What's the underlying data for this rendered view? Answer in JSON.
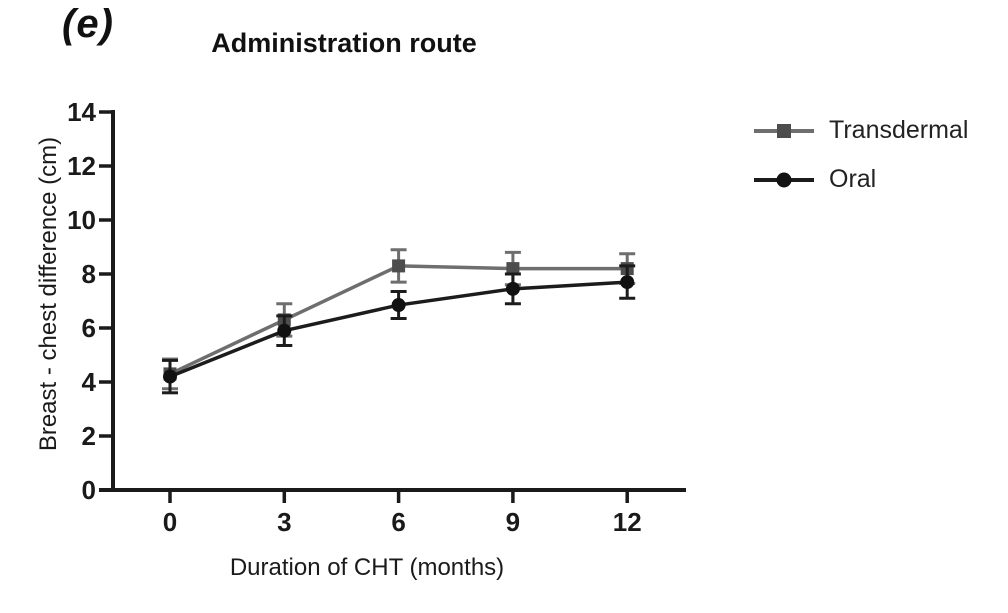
{
  "chart_data": {
    "type": "line",
    "panel_label": "(e)",
    "title": "Administration route",
    "xlabel": "Duration of CHT (months)",
    "ylabel": "Breast - chest difference (cm)",
    "x": [
      0,
      3,
      6,
      9,
      12
    ],
    "xticks": [
      0,
      3,
      6,
      9,
      12
    ],
    "yticks": [
      0,
      2,
      4,
      6,
      8,
      10,
      12,
      14
    ],
    "xlim": [
      0,
      12
    ],
    "ylim": [
      0,
      14
    ],
    "grid": false,
    "legend_position": "right",
    "error_bars": "sd",
    "axis_color": "#1a1a1a",
    "series": [
      {
        "name": "Transdermal",
        "marker": "square",
        "color": "#6e6e6e",
        "marker_color": "#4d4d4d",
        "values": [
          4.3,
          6.3,
          8.3,
          8.2,
          8.2
        ],
        "errors": [
          0.55,
          0.6,
          0.6,
          0.6,
          0.55
        ]
      },
      {
        "name": "Oral",
        "marker": "circle",
        "color": "#1c1c1c",
        "marker_color": "#111111",
        "values": [
          4.2,
          5.9,
          6.85,
          7.45,
          7.7
        ],
        "errors": [
          0.6,
          0.55,
          0.5,
          0.55,
          0.6
        ]
      }
    ]
  }
}
